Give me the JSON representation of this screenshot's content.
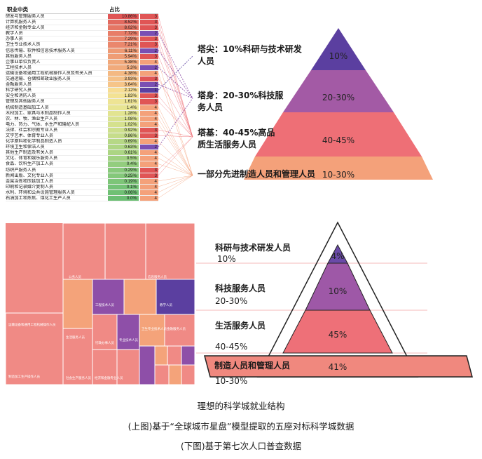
{
  "top": {
    "table_header": {
      "col1": "职业中类",
      "col2": "占比"
    },
    "rows": [
      {
        "name": "研发与管理服务人员",
        "pct": "10.86%",
        "rank": "3",
        "pc": "#e05555",
        "rc": "#e05555"
      },
      {
        "name": "计算机服务人员",
        "pct": "8.52%",
        "rank": "3",
        "pc": "#e26a5f",
        "rc": "#e05555"
      },
      {
        "name": "经济和金融专业人员",
        "pct": "8.02%",
        "rank": "3",
        "pc": "#e57664",
        "rc": "#e05555"
      },
      {
        "name": "教学人员",
        "pct": "7.72%",
        "rank": "2",
        "pc": "#e87d68",
        "rc": "#7a4fb3"
      },
      {
        "name": "办事人员",
        "pct": "7.29%",
        "rank": "3",
        "pc": "#ea856b",
        "rc": "#e05555"
      },
      {
        "name": "卫生专业技术人员",
        "pct": "7.21%",
        "rank": "3",
        "pc": "#ea876c",
        "rc": "#e05555"
      },
      {
        "name": "信息传输、软件和信息技术服务人员",
        "pct": "6.11%",
        "rank": "2",
        "pc": "#ee9a74",
        "rc": "#7a4fb3"
      },
      {
        "name": "其他服务人员",
        "pct": "5.94%",
        "rank": "3",
        "pc": "#ef9d75",
        "rc": "#e05555"
      },
      {
        "name": "企事业单位负责人",
        "pct": "5.38%",
        "rank": "4",
        "pc": "#f1a87a",
        "rc": "#f4a17a"
      },
      {
        "name": "工程技术人员",
        "pct": "5.3%",
        "rank": "2",
        "pc": "#f1aa7b",
        "rc": "#7a4fb3"
      },
      {
        "name": "运输设备和通用工程机械操作人员及有关人员",
        "pct": "4.38%",
        "rank": "4",
        "pc": "#f4b983",
        "rc": "#f4a17a"
      },
      {
        "name": "交通运输、仓储和邮政业服务人员",
        "pct": "3.93%",
        "rank": "3",
        "pc": "#f5c087",
        "rc": "#e05555"
      },
      {
        "name": "金融服务人员",
        "pct": "3.64%",
        "rank": "2",
        "pc": "#f6c589",
        "rc": "#7a4fb3"
      },
      {
        "name": "科学研究人员",
        "pct": "2.12%",
        "rank": "1",
        "pc": "#f7dd93",
        "rc": "#5b3fa0"
      },
      {
        "name": "安全和消防人员",
        "pct": "1.83%",
        "rank": "3",
        "pc": "#f3e293",
        "rc": "#e05555"
      },
      {
        "name": "管理及其他服务人员",
        "pct": "1.61%",
        "rank": "3",
        "pc": "#eee494",
        "rc": "#e05555"
      },
      {
        "name": "机械制造基础加工人员",
        "pct": "1.4%",
        "rank": "4",
        "pc": "#e8e592",
        "rc": "#f4a17a"
      },
      {
        "name": "木材加工、家具与木制品制作人员",
        "pct": "1.28%",
        "rank": "4",
        "pc": "#e2e491",
        "rc": "#f4a17a"
      },
      {
        "name": "农、林、牧、渔业生产人员",
        "pct": "1.08%",
        "rank": "4",
        "pc": "#d9e28f",
        "rc": "#f4a17a"
      },
      {
        "name": "电力、热力、气体、水生产和输配人员",
        "pct": "1.02%",
        "rank": "4",
        "pc": "#d5e18e",
        "rc": "#f4a17a"
      },
      {
        "name": "法律、社会和宗教专业人员",
        "pct": "0.92%",
        "rank": "3",
        "pc": "#cddf8c",
        "rc": "#e05555"
      },
      {
        "name": "文学艺术、体育专业人员",
        "pct": "0.86%",
        "rank": "3",
        "pc": "#c6dd8a",
        "rc": "#e05555"
      },
      {
        "name": "化学原料和化学制品制造人员",
        "pct": "0.69%",
        "rank": "4",
        "pc": "#b6d886",
        "rc": "#f4a17a"
      },
      {
        "name": "环境卫生和保洁人员",
        "pct": "0.63%",
        "rank": "2",
        "pc": "#afd684",
        "rc": "#7a4fb3"
      },
      {
        "name": "其他生产制造及有关人员",
        "pct": "0.61%",
        "rank": "4",
        "pc": "#acd583",
        "rc": "#f4a17a"
      },
      {
        "name": "文化、体育和娱乐服务人员",
        "pct": "0.5%",
        "rank": "4",
        "pc": "#a0d180",
        "rc": "#f4a17a"
      },
      {
        "name": "食品、饮料生产加工人员",
        "pct": "0.4%",
        "rank": "4",
        "pc": "#93cd7e",
        "rc": "#f4a17a"
      },
      {
        "name": "纺织产服务人员",
        "pct": "0.29%",
        "rank": "3",
        "pc": "#88c97b",
        "rc": "#e05555"
      },
      {
        "name": "新闻出版、文化专业人员",
        "pct": "0.25%",
        "rank": "3",
        "pc": "#84c87a",
        "rc": "#e05555"
      },
      {
        "name": "金属冶炼和压延加工人员",
        "pct": "0.19%",
        "rank": "4",
        "pc": "#7dc578",
        "rc": "#f4a17a"
      },
      {
        "name": "印刷和记录媒介复制人员",
        "pct": "0.1%",
        "rank": "4",
        "pc": "#74c276",
        "rc": "#f4a17a"
      },
      {
        "name": "水利、环境和公共设施管理服务人员",
        "pct": "0.06%",
        "rank": "4",
        "pc": "#6fc074",
        "rc": "#f4a17a"
      },
      {
        "name": "石油加工和炼焦、煤化工生产人员",
        "pct": "0.0%",
        "rank": "4",
        "pc": "#6bbe73",
        "rc": "#f4a17a"
      }
    ],
    "labels": {
      "l1": "塔尖：10%科研与技术研发人员",
      "l2": "塔身：20-30%科技服务人员",
      "l3": "塔基：40-45%高品质生活服务人员",
      "l4": "一部分先进制造人员和管理人员"
    },
    "pyramid_pcts": [
      "10%",
      "20-30%",
      "40-45%",
      "10-30%"
    ]
  },
  "bottom": {
    "treemap_labels": [
      "公务人员",
      "运输设备和通用工程机械操作人员",
      "工程技术人员",
      "教学人员",
      "制造加工生产操作人员",
      "生活服务人员",
      "行政办事人员",
      "社会生产服务人员",
      "专业技术人员",
      "卫生专业技术人员",
      "金融服务人员",
      "信息服务人员",
      "经济和金融专业人员"
    ],
    "labels": {
      "l1": "科研与技术研发人员",
      "l2": "科技服务人员",
      "l3": "生活服务人员",
      "l4": "制造人员和管理人员"
    },
    "plain": {
      "p1": "10%",
      "p2": "20-30%",
      "p3": "40-45%",
      "p4": "10-30%"
    },
    "pyramid_pcts": [
      "4%",
      "10%",
      "45%",
      "41%"
    ]
  },
  "captions": {
    "c1": "理想的科学城就业结构",
    "c2": "(上图)基于“全球城市星盘”模型提取的五座对标科学城数据",
    "c3": "(下图)基于第七次人口普查数据"
  },
  "colors": {
    "purple_dark": "#5b3fa0",
    "purple": "#8e4fa8",
    "red": "#e9707a",
    "salmon": "#f4a17a"
  }
}
